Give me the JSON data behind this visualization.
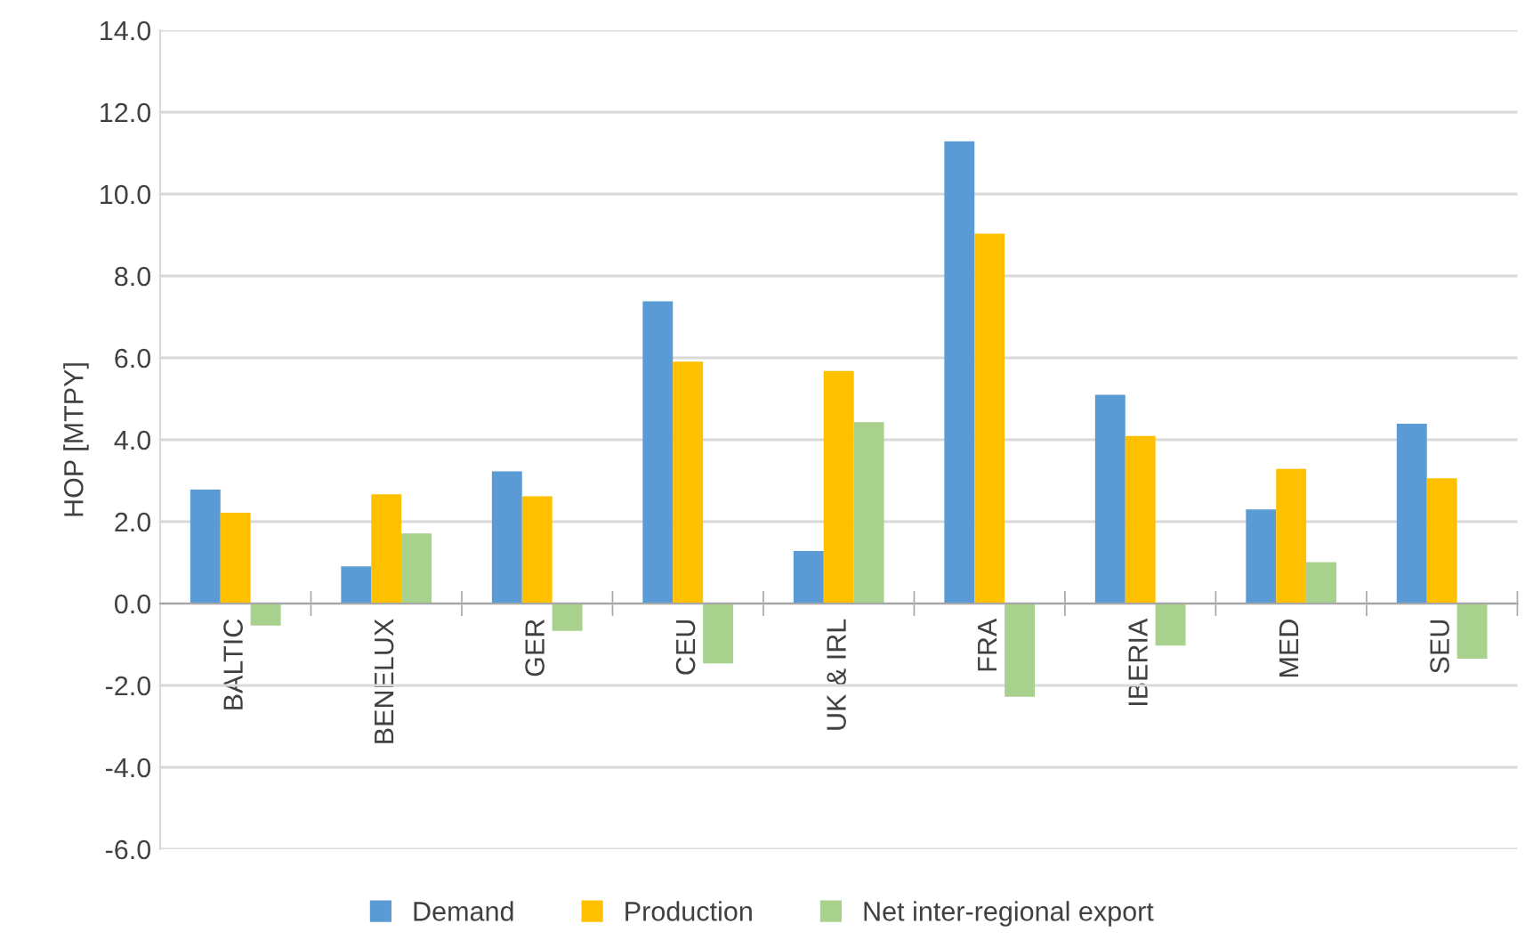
{
  "chart_data": {
    "type": "bar",
    "ylabel": "HOP [MTPY]",
    "categories": [
      "BALTIC",
      "BENELUX",
      "GER",
      "CEU",
      "UK & IRL",
      "FRA",
      "IBERIA",
      "MED",
      "SEU"
    ],
    "series": [
      {
        "name": "Demand",
        "color": "#5b9bd5",
        "values": [
          2.78,
          0.91,
          3.23,
          7.38,
          1.28,
          11.29,
          5.1,
          2.3,
          4.39
        ]
      },
      {
        "name": "Production",
        "color": "#ffc000",
        "values": [
          2.22,
          2.67,
          2.62,
          5.91,
          5.68,
          9.03,
          4.09,
          3.29,
          3.06
        ]
      },
      {
        "name": "Net inter-regional export",
        "color": "#a9d18e",
        "values": [
          -0.54,
          1.71,
          -0.67,
          -1.46,
          4.43,
          -2.28,
          -1.03,
          1.01,
          -1.35
        ]
      }
    ],
    "ylim": [
      -6,
      14
    ],
    "yticks": [
      {
        "value": -6,
        "label": "-6.0"
      },
      {
        "value": -4,
        "label": "-4.0"
      },
      {
        "value": -2,
        "label": "-2.0"
      },
      {
        "value": 0,
        "label": "0.0"
      },
      {
        "value": 2,
        "label": "2.0"
      },
      {
        "value": 4,
        "label": "4.0"
      },
      {
        "value": 6,
        "label": "6.0"
      },
      {
        "value": 8,
        "label": "8.0"
      },
      {
        "value": 10,
        "label": "10.0"
      },
      {
        "value": 12,
        "label": "12.0"
      },
      {
        "value": 14,
        "label": "14.0"
      }
    ],
    "grid": "y",
    "legend": "bottom"
  }
}
